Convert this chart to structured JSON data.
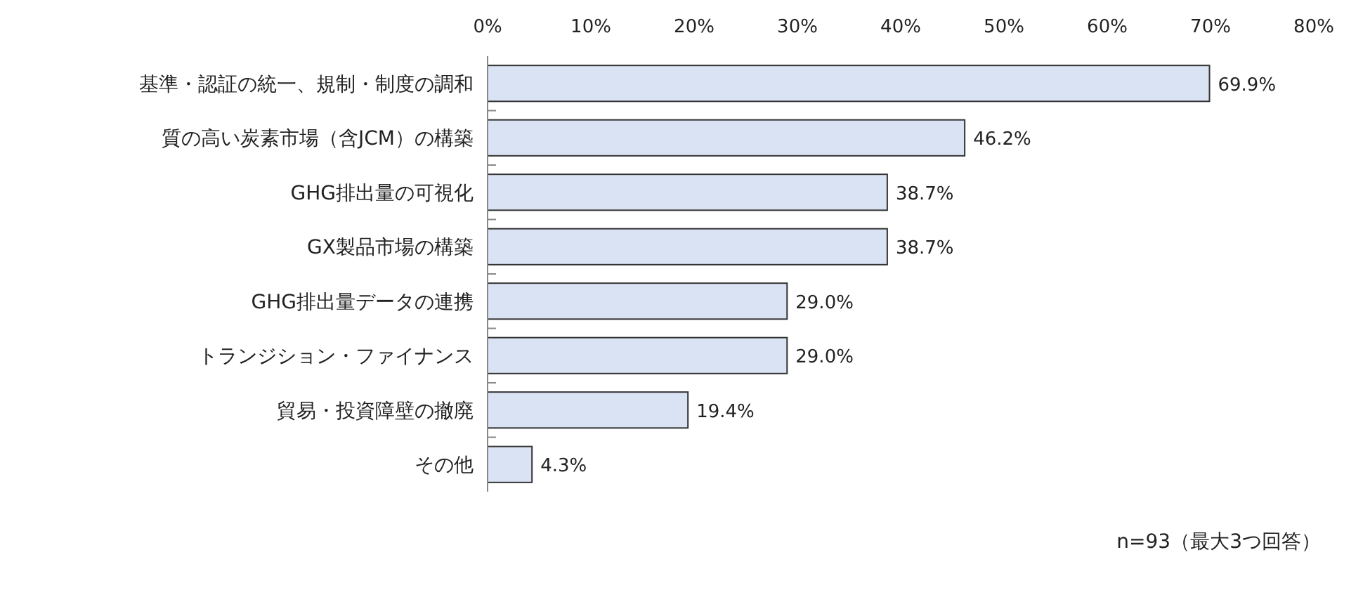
{
  "chart_data": {
    "type": "bar",
    "orientation": "horizontal",
    "categories": [
      "基準・認証の統一、規制・制度の調和",
      "質の高い炭素市場（含JCM）の構築",
      "GHG排出量の可視化",
      "GX製品市場の構築",
      "GHG排出量データの連携",
      "トランジション・ファイナンス",
      "貿易・投資障壁の撤廃",
      "その他"
    ],
    "values": [
      69.9,
      46.2,
      38.7,
      38.7,
      29.0,
      29.0,
      19.4,
      4.3
    ],
    "value_labels": [
      "69.9%",
      "46.2%",
      "38.7%",
      "38.7%",
      "29.0%",
      "29.0%",
      "19.4%",
      "4.3%"
    ],
    "color": "#dae3f3",
    "xlim": [
      0,
      80
    ],
    "xticks": [
      {
        "value": 0,
        "label": "0%"
      },
      {
        "value": 10,
        "label": "10%"
      },
      {
        "value": 20,
        "label": "20%"
      },
      {
        "value": 30,
        "label": "30%"
      },
      {
        "value": 40,
        "label": "40%"
      },
      {
        "value": 50,
        "label": "50%"
      },
      {
        "value": 60,
        "label": "60%"
      },
      {
        "value": 70,
        "label": "70%"
      },
      {
        "value": 80,
        "label": "80%"
      }
    ],
    "annotations": [
      "n=93（最大3つ回答）"
    ]
  }
}
